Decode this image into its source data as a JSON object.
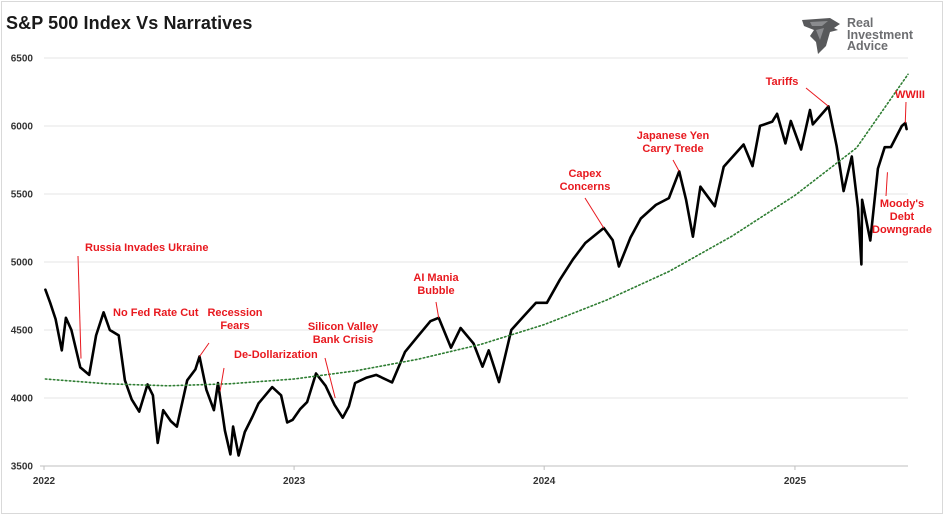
{
  "header": {
    "title": "S&P 500 Index Vs Narratives",
    "logo_lines": [
      "Real",
      "Investment",
      "Advice"
    ]
  },
  "colors": {
    "price_line": "#000000",
    "trend_line": "#2e7d32",
    "annotation": "#e8191f",
    "gridline": "#e6e6e6"
  },
  "chart_data": {
    "type": "line",
    "title": "S&P 500 Index Vs Narratives",
    "xlabel": "",
    "ylabel": "",
    "ylim": [
      3500,
      6500
    ],
    "xlim": [
      "2022-01-01",
      "2025-06-15"
    ],
    "yticks": [
      "3500",
      "4000",
      "4500",
      "5000",
      "5500",
      "6000",
      "6500"
    ],
    "xticks": [
      {
        "date": "2022-01-01",
        "label": "2022"
      },
      {
        "date": "2023-01-01",
        "label": "2023"
      },
      {
        "date": "2024-01-01",
        "label": "2024"
      },
      {
        "date": "2025-01-01",
        "label": "2025"
      }
    ],
    "grid": "horizontal",
    "series": [
      {
        "style": "solid",
        "points": [
          [
            "2022-01-03",
            4796
          ],
          [
            "2022-01-10",
            4700
          ],
          [
            "2022-01-18",
            4580
          ],
          [
            "2022-01-27",
            4350
          ],
          [
            "2022-02-02",
            4590
          ],
          [
            "2022-02-10",
            4500
          ],
          [
            "2022-02-23",
            4225
          ],
          [
            "2022-03-08",
            4170
          ],
          [
            "2022-03-18",
            4460
          ],
          [
            "2022-03-29",
            4630
          ],
          [
            "2022-04-07",
            4500
          ],
          [
            "2022-04-20",
            4460
          ],
          [
            "2022-04-29",
            4130
          ],
          [
            "2022-05-09",
            3990
          ],
          [
            "2022-05-20",
            3900
          ],
          [
            "2022-06-01",
            4100
          ],
          [
            "2022-06-09",
            4020
          ],
          [
            "2022-06-16",
            3670
          ],
          [
            "2022-06-24",
            3910
          ],
          [
            "2022-07-05",
            3830
          ],
          [
            "2022-07-14",
            3790
          ],
          [
            "2022-07-29",
            4130
          ],
          [
            "2022-08-10",
            4210
          ],
          [
            "2022-08-16",
            4305
          ],
          [
            "2022-08-26",
            4060
          ],
          [
            "2022-09-06",
            3910
          ],
          [
            "2022-09-12",
            4110
          ],
          [
            "2022-09-22",
            3760
          ],
          [
            "2022-09-30",
            3585
          ],
          [
            "2022-10-04",
            3790
          ],
          [
            "2022-10-12",
            3577
          ],
          [
            "2022-10-21",
            3750
          ],
          [
            "2022-11-01",
            3860
          ],
          [
            "2022-11-10",
            3960
          ],
          [
            "2022-11-30",
            4080
          ],
          [
            "2022-12-13",
            4020
          ],
          [
            "2022-12-22",
            3820
          ],
          [
            "2022-12-30",
            3840
          ],
          [
            "2023-01-10",
            3920
          ],
          [
            "2023-01-20",
            3970
          ],
          [
            "2023-02-02",
            4180
          ],
          [
            "2023-02-16",
            4090
          ],
          [
            "2023-03-01",
            3950
          ],
          [
            "2023-03-13",
            3855
          ],
          [
            "2023-03-22",
            3940
          ],
          [
            "2023-03-31",
            4110
          ],
          [
            "2023-04-17",
            4150
          ],
          [
            "2023-05-01",
            4170
          ],
          [
            "2023-05-24",
            4115
          ],
          [
            "2023-06-12",
            4340
          ],
          [
            "2023-06-30",
            4450
          ],
          [
            "2023-07-19",
            4565
          ],
          [
            "2023-07-31",
            4590
          ],
          [
            "2023-08-18",
            4370
          ],
          [
            "2023-09-01",
            4515
          ],
          [
            "2023-09-20",
            4400
          ],
          [
            "2023-10-03",
            4230
          ],
          [
            "2023-10-12",
            4350
          ],
          [
            "2023-10-27",
            4117
          ],
          [
            "2023-11-14",
            4500
          ],
          [
            "2023-12-01",
            4595
          ],
          [
            "2023-12-20",
            4700
          ],
          [
            "2024-01-05",
            4700
          ],
          [
            "2024-01-24",
            4870
          ],
          [
            "2024-02-12",
            5020
          ],
          [
            "2024-03-01",
            5140
          ],
          [
            "2024-03-28",
            5250
          ],
          [
            "2024-04-10",
            5160
          ],
          [
            "2024-04-19",
            4967
          ],
          [
            "2024-05-06",
            5180
          ],
          [
            "2024-05-21",
            5320
          ],
          [
            "2024-06-12",
            5420
          ],
          [
            "2024-07-01",
            5470
          ],
          [
            "2024-07-16",
            5667
          ],
          [
            "2024-07-26",
            5460
          ],
          [
            "2024-08-05",
            5186
          ],
          [
            "2024-08-16",
            5554
          ],
          [
            "2024-09-06",
            5410
          ],
          [
            "2024-09-19",
            5700
          ],
          [
            "2024-10-18",
            5864
          ],
          [
            "2024-10-31",
            5705
          ],
          [
            "2024-11-11",
            6001
          ],
          [
            "2024-11-29",
            6032
          ],
          [
            "2024-12-06",
            6090
          ],
          [
            "2024-12-18",
            5872
          ],
          [
            "2024-12-26",
            6037
          ],
          [
            "2025-01-10",
            5827
          ],
          [
            "2025-01-23",
            6118
          ],
          [
            "2025-01-27",
            6012
          ],
          [
            "2025-02-19",
            6144
          ],
          [
            "2025-03-03",
            5850
          ],
          [
            "2025-03-13",
            5521
          ],
          [
            "2025-03-25",
            5776
          ],
          [
            "2025-04-03",
            5396
          ],
          [
            "2025-04-08",
            4982
          ],
          [
            "2025-04-09",
            5457
          ],
          [
            "2025-04-21",
            5158
          ],
          [
            "2025-05-02",
            5687
          ],
          [
            "2025-05-12",
            5844
          ],
          [
            "2025-05-21",
            5845
          ],
          [
            "2025-06-06",
            6000
          ],
          [
            "2025-06-11",
            6022
          ],
          [
            "2025-06-13",
            5977
          ]
        ]
      },
      {
        "style": "dotted",
        "points": [
          [
            "2022-01-03",
            4140
          ],
          [
            "2022-04-01",
            4105
          ],
          [
            "2022-07-01",
            4090
          ],
          [
            "2022-10-01",
            4105
          ],
          [
            "2023-01-01",
            4140
          ],
          [
            "2023-04-01",
            4200
          ],
          [
            "2023-07-01",
            4285
          ],
          [
            "2023-10-01",
            4395
          ],
          [
            "2024-01-01",
            4540
          ],
          [
            "2024-04-01",
            4720
          ],
          [
            "2024-07-01",
            4930
          ],
          [
            "2024-10-01",
            5190
          ],
          [
            "2025-01-01",
            5490
          ],
          [
            "2025-04-01",
            5840
          ],
          [
            "2025-06-15",
            6380
          ]
        ]
      }
    ],
    "annotations": [
      {
        "lines": [
          "Russia Invades Ukraine"
        ],
        "date": "2022-02-24",
        "value": 4290
      },
      {
        "lines": [
          "No Fed Rate Cut"
        ],
        "date": "2022-03-29",
        "value": 4630
      },
      {
        "lines": [
          "Recession",
          "Fears"
        ],
        "date": "2022-08-16",
        "value": 4305
      },
      {
        "lines": [
          "De-Dollarization"
        ],
        "date": "2022-09-15",
        "value": 4050
      },
      {
        "lines": [
          "Silicon Valley",
          "Bank Crisis"
        ],
        "date": "2023-03-02",
        "value": 4000
      },
      {
        "lines": [
          "AI Mania",
          "Bubble"
        ],
        "date": "2023-07-31",
        "value": 4590
      },
      {
        "lines": [
          "Capex",
          "Concerns"
        ],
        "date": "2024-03-28",
        "value": 5250
      },
      {
        "lines": [
          "Japanese Yen",
          "Carry Trede"
        ],
        "date": "2024-07-16",
        "value": 5667
      },
      {
        "lines": [
          "Tariffs"
        ],
        "date": "2025-02-19",
        "value": 6144
      },
      {
        "lines": [
          "WWIII"
        ],
        "date": "2025-06-11",
        "value": 6022
      },
      {
        "lines": [
          "Moody's",
          "Debt",
          "Downgrade"
        ],
        "date": "2025-05-16",
        "value": 5660
      }
    ]
  }
}
